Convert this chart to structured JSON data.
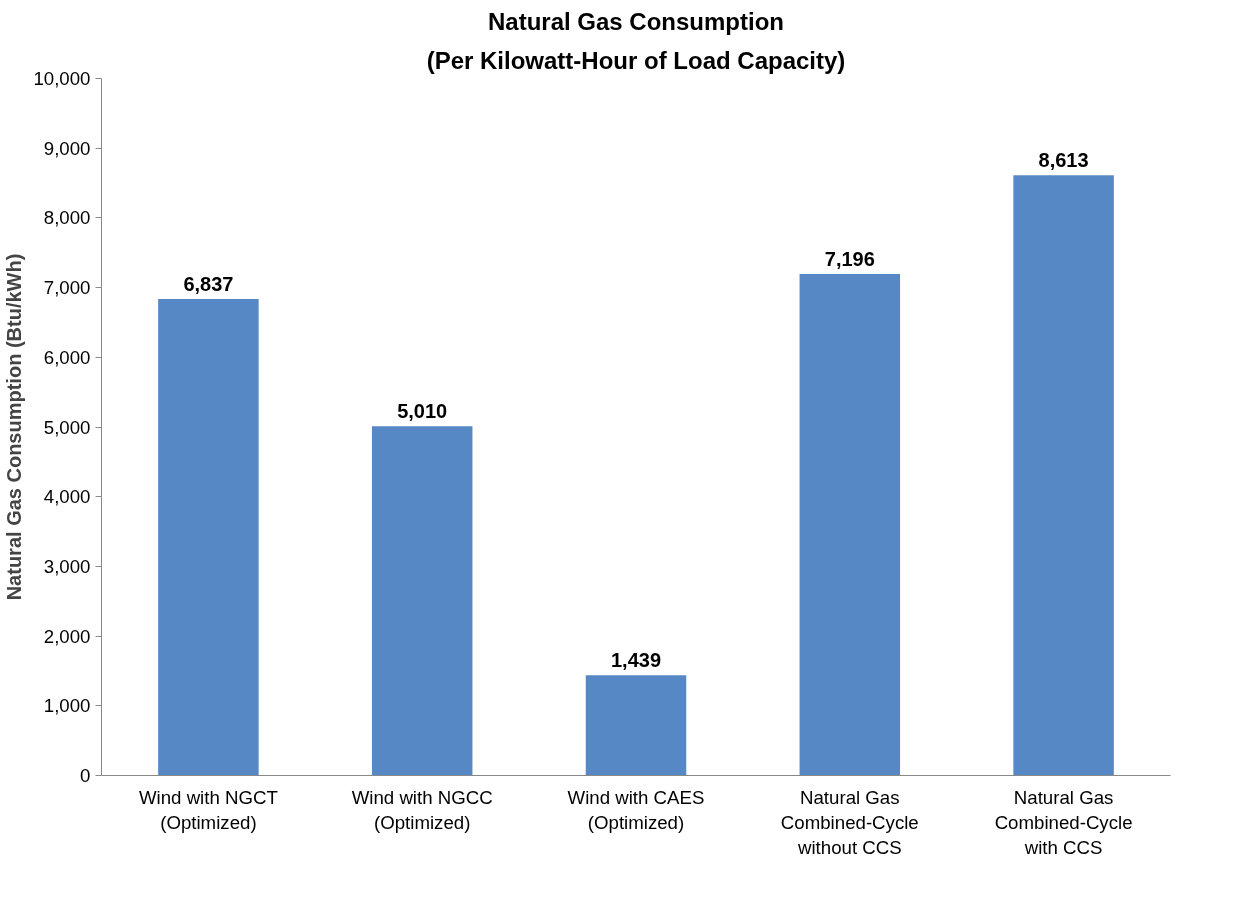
{
  "chart_data": {
    "type": "bar",
    "title": "Natural Gas Consumption",
    "subtitle": "(Per Kilowatt-Hour of Load Capacity)",
    "ylabel": "Natural Gas Consumption (Btu/kWh)",
    "categories": [
      "Wind with NGCT\n(Optimized)",
      "Wind with NGCC\n(Optimized)",
      "Wind with CAES\n(Optimized)",
      "Natural Gas\nCombined-Cycle\nwithout CCS",
      "Natural Gas\nCombined-Cycle\nwith CCS"
    ],
    "values": [
      6837,
      5010,
      1439,
      7196,
      8613
    ],
    "color": "#5588c4",
    "ylim": [
      0,
      10000
    ],
    "yticks": [
      {
        "value": 0,
        "label": "0"
      },
      {
        "value": 1000,
        "label": "1,000"
      },
      {
        "value": 2000,
        "label": "2,000"
      },
      {
        "value": 3000,
        "label": "3,000"
      },
      {
        "value": 4000,
        "label": "4,000"
      },
      {
        "value": 5000,
        "label": "5,000"
      },
      {
        "value": 6000,
        "label": "6,000"
      },
      {
        "value": 7000,
        "label": "7,000"
      },
      {
        "value": 8000,
        "label": "8,000"
      },
      {
        "value": 9000,
        "label": "9,000"
      },
      {
        "value": 10000,
        "label": "10,000"
      }
    ],
    "value_labels": [
      "6,837",
      "5,010",
      "1,439",
      "7,196",
      "8,613"
    ],
    "grid": false
  }
}
